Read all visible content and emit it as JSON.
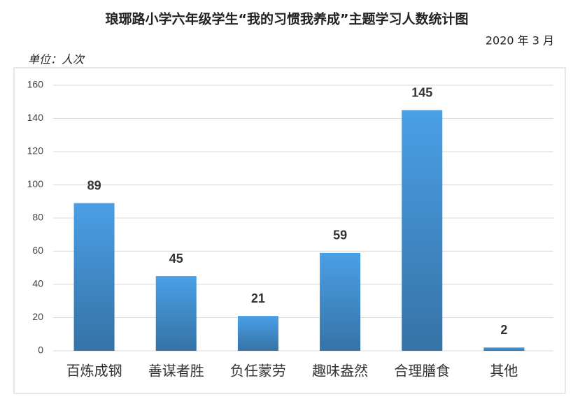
{
  "chart_data": {
    "type": "bar",
    "title": "琅琊路小学六年级学生“我的习惯我养成”主题学习人数统计图",
    "subtitle": "2020 年 3 月",
    "unit_label": "单位：人次",
    "categories": [
      "百炼成钢",
      "善谋者胜",
      "负任蒙劳",
      "趣味盎然",
      "合理膳食",
      "其他"
    ],
    "values": [
      89,
      45,
      21,
      59,
      145,
      2
    ],
    "color": "#4a9fe6",
    "ylim": [
      0,
      160
    ],
    "yticks": [
      0,
      20,
      40,
      60,
      80,
      100,
      120,
      140,
      160
    ],
    "grid": true
  }
}
